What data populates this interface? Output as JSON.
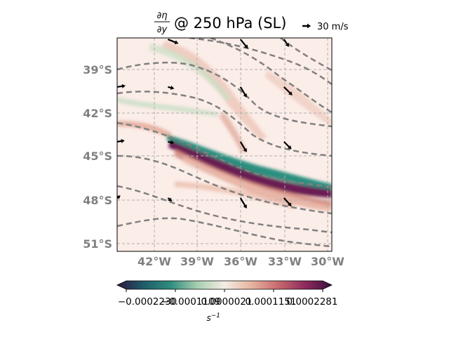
{
  "title": {
    "numerator": "∂η",
    "denominator": "∂y",
    "text": "@ 250 hPa (SL)"
  },
  "quiver_key": {
    "label": "30 m/s"
  },
  "colorbar": {
    "ticks": [
      "−0.0002230",
      "−0.0001109",
      "0.0000021",
      "0.0001151",
      "0.0002281"
    ],
    "unit_base": "s",
    "unit_exp": "−1",
    "colors": [
      "#2a1a3e",
      "#1f5d6b",
      "#2f8e7e",
      "#a9cfb0",
      "#f3ede6",
      "#e6b4a0",
      "#c76a6e",
      "#8e2a5e",
      "#3b0f3f"
    ]
  },
  "chart_data": {
    "type": "heatmap",
    "title": "∂η/∂y @ 250 hPa (SL)",
    "xlabel": "",
    "ylabel": "",
    "x_ticks": [
      {
        "value": -42,
        "label": "42°W"
      },
      {
        "value": -39,
        "label": "39°W"
      },
      {
        "value": -36,
        "label": "36°W"
      },
      {
        "value": -33,
        "label": "33°W"
      },
      {
        "value": -30,
        "label": "30°W"
      }
    ],
    "y_ticks": [
      {
        "value": -39,
        "label": "39°S"
      },
      {
        "value": -42,
        "label": "42°S"
      },
      {
        "value": -45,
        "label": "45°S"
      },
      {
        "value": -48,
        "label": "48°S"
      },
      {
        "value": -51,
        "label": "51°S"
      }
    ],
    "xlim": [
      -44.5,
      -29.7
    ],
    "ylim": [
      -51.6,
      -36.8
    ],
    "clim": [
      -0.000223,
      0.0002281
    ],
    "grid": true,
    "vector_scale": "30 m/s",
    "vectors": [
      {
        "lon": -41,
        "lat": -36.9,
        "u": 25,
        "v": -10
      },
      {
        "lon": -36,
        "lat": -36.9,
        "u": 18,
        "v": -22
      },
      {
        "lon": -33,
        "lat": -36.9,
        "u": 12,
        "v": -18
      },
      {
        "lon": -44.5,
        "lat": -40.2,
        "u": 20,
        "v": 3
      },
      {
        "lon": -41,
        "lat": -40.2,
        "u": 15,
        "v": -4
      },
      {
        "lon": -36,
        "lat": -40.2,
        "u": 15,
        "v": -25
      },
      {
        "lon": -33,
        "lat": -40.2,
        "u": 20,
        "v": -20
      },
      {
        "lon": -44.5,
        "lat": -44.0,
        "u": 18,
        "v": 3
      },
      {
        "lon": -41,
        "lat": -44.0,
        "u": 15,
        "v": -3
      },
      {
        "lon": -36,
        "lat": -44.0,
        "u": 15,
        "v": -25
      },
      {
        "lon": -33,
        "lat": -44.0,
        "u": 18,
        "v": -18
      },
      {
        "lon": -44.5,
        "lat": -47.9,
        "u": 8,
        "v": 6
      },
      {
        "lon": -41,
        "lat": -47.9,
        "u": 10,
        "v": -8
      },
      {
        "lon": -36,
        "lat": -47.9,
        "u": 15,
        "v": -25
      },
      {
        "lon": -33,
        "lat": -47.9,
        "u": 18,
        "v": -20
      }
    ]
  }
}
